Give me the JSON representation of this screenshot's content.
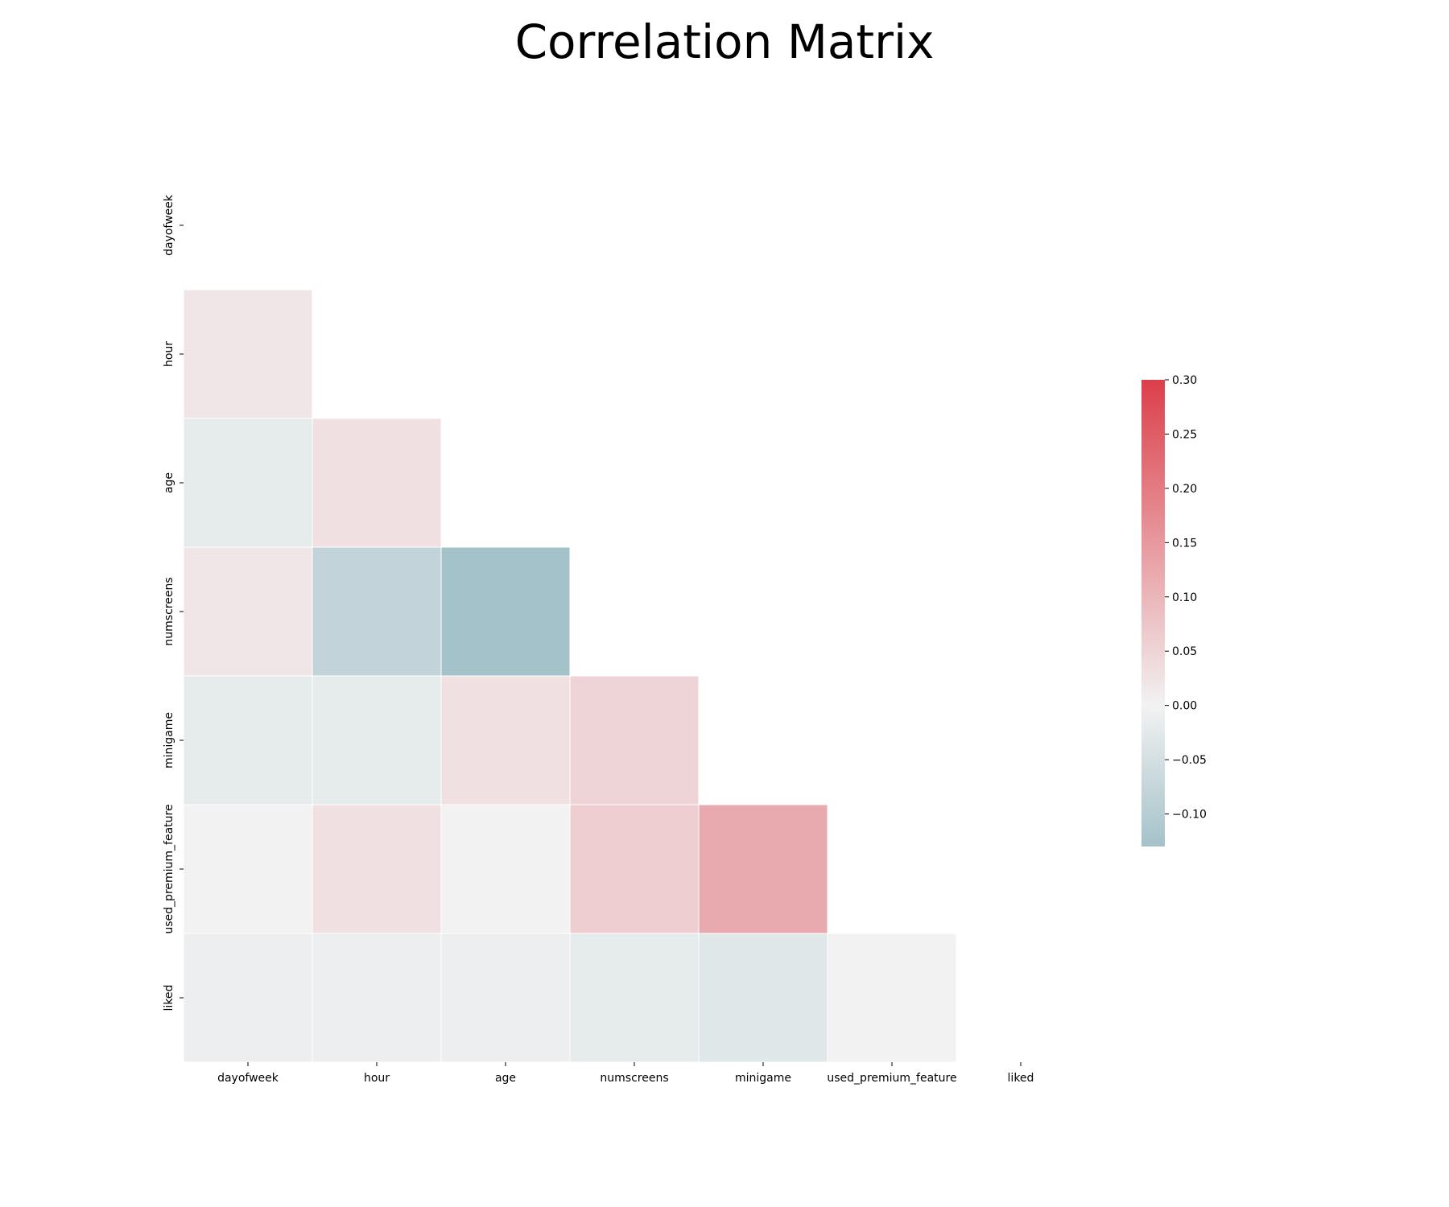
{
  "chart_data": {
    "type": "heatmap",
    "title": "Correlation Matrix",
    "xlabel": "",
    "ylabel": "",
    "variables": [
      "dayofweek",
      "hour",
      "age",
      "numscreens",
      "minigame",
      "used_premium_feature",
      "liked"
    ],
    "mask": "upper-triangle-including-diagonal",
    "matrix": [
      [
        null,
        null,
        null,
        null,
        null,
        null,
        null
      ],
      [
        0.02,
        null,
        null,
        null,
        null,
        null,
        null
      ],
      [
        -0.02,
        0.03,
        null,
        null,
        null,
        null,
        null
      ],
      [
        0.02,
        -0.08,
        -0.13,
        null,
        null,
        null,
        null
      ],
      [
        -0.02,
        -0.02,
        0.03,
        0.05,
        null,
        null,
        null
      ],
      [
        0.0,
        0.03,
        0.0,
        0.06,
        0.12,
        null,
        null
      ],
      [
        -0.01,
        -0.01,
        -0.01,
        -0.02,
        -0.03,
        0.0,
        null
      ]
    ],
    "colorbar": {
      "min": -0.13,
      "max": 0.3,
      "ticks": [
        0.3,
        0.25,
        0.2,
        0.15,
        0.1,
        0.05,
        0.0,
        -0.05,
        -0.1
      ],
      "tick_labels": [
        "0.30",
        "0.25",
        "0.20",
        "0.15",
        "0.10",
        "0.05",
        "0.00",
        "−0.05",
        "−0.10"
      ],
      "colors": {
        "negative": "#a4c2c9",
        "zero": "#f2f2f2",
        "positive": "#dc3f4a"
      }
    },
    "grid": false,
    "legend": "right"
  }
}
